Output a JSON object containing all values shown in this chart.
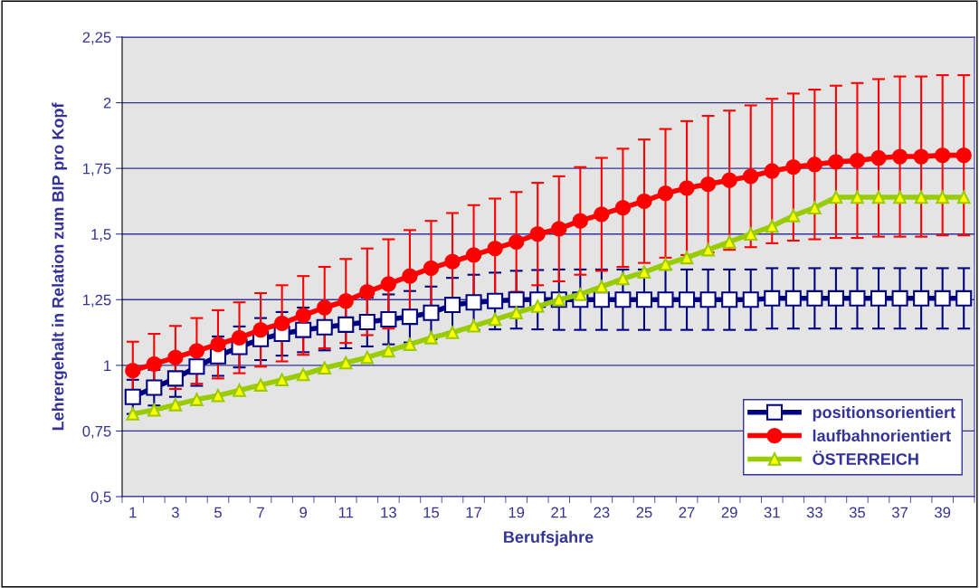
{
  "chart_data": {
    "type": "line",
    "xlabel": "Berufsjahre",
    "ylabel": "Lehrergehalt in Relation zum BIP pro Kopf",
    "categories": [
      "1",
      null,
      "3",
      null,
      "5",
      null,
      "7",
      null,
      "9",
      null,
      "11",
      null,
      "13",
      null,
      "15",
      null,
      "17",
      null,
      "19",
      null,
      "21",
      null,
      "23",
      null,
      "25",
      null,
      "27",
      null,
      "29",
      null,
      "31",
      null,
      "33",
      null,
      "35",
      null,
      "37",
      null,
      "39",
      null
    ],
    "ylim": [
      0.5,
      2.25
    ],
    "yticks": [
      {
        "value": 0.5,
        "label": "0,5"
      },
      {
        "value": 0.75,
        "label": "0,75"
      },
      {
        "value": 1,
        "label": "1"
      },
      {
        "value": 1.25,
        "label": "1,25"
      },
      {
        "value": 1.5,
        "label": "1,5"
      },
      {
        "value": 1.75,
        "label": "1,75"
      },
      {
        "value": 2,
        "label": "2"
      },
      {
        "value": 2.25,
        "label": "2,25"
      }
    ],
    "grid": "y",
    "legend": "bottom right",
    "series": [
      {
        "name": "positionsorientiert",
        "color": "#000080",
        "marker": "square",
        "values": [
          0.88,
          0.915,
          0.95,
          0.995,
          1.035,
          1.07,
          1.1,
          1.12,
          1.135,
          1.145,
          1.155,
          1.165,
          1.175,
          1.185,
          1.2,
          1.23,
          1.24,
          1.245,
          1.25,
          1.25,
          1.25,
          1.25,
          1.25,
          1.25,
          1.25,
          1.25,
          1.25,
          1.25,
          1.25,
          1.25,
          1.255,
          1.255,
          1.255,
          1.255,
          1.255,
          1.255,
          1.255,
          1.255,
          1.255,
          1.255
        ],
        "errors": [
          0.065,
          0.068,
          0.07,
          0.073,
          0.075,
          0.078,
          0.08,
          0.083,
          0.085,
          0.088,
          0.09,
          0.093,
          0.095,
          0.098,
          0.1,
          0.103,
          0.105,
          0.108,
          0.11,
          0.113,
          0.115,
          0.115,
          0.115,
          0.115,
          0.115,
          0.115,
          0.115,
          0.115,
          0.115,
          0.115,
          0.115,
          0.115,
          0.115,
          0.115,
          0.115,
          0.115,
          0.115,
          0.115,
          0.115,
          0.115
        ]
      },
      {
        "name": "laufbahnorientiert",
        "color": "#ff0000",
        "marker": "circle",
        "values": [
          0.98,
          1.005,
          1.03,
          1.055,
          1.08,
          1.105,
          1.135,
          1.16,
          1.19,
          1.22,
          1.245,
          1.28,
          1.31,
          1.34,
          1.37,
          1.395,
          1.42,
          1.445,
          1.47,
          1.5,
          1.52,
          1.55,
          1.575,
          1.6,
          1.625,
          1.655,
          1.675,
          1.69,
          1.705,
          1.72,
          1.74,
          1.755,
          1.765,
          1.775,
          1.78,
          1.79,
          1.795,
          1.795,
          1.8,
          1.8
        ],
        "errors": [
          0.11,
          0.115,
          0.12,
          0.125,
          0.13,
          0.135,
          0.14,
          0.145,
          0.15,
          0.155,
          0.16,
          0.165,
          0.17,
          0.175,
          0.18,
          0.185,
          0.19,
          0.19,
          0.19,
          0.195,
          0.2,
          0.205,
          0.215,
          0.225,
          0.235,
          0.245,
          0.255,
          0.26,
          0.265,
          0.27,
          0.275,
          0.28,
          0.285,
          0.29,
          0.295,
          0.3,
          0.305,
          0.305,
          0.305,
          0.305
        ]
      },
      {
        "name": "ÖSTERREICH",
        "color": "#99cc00",
        "marker": "triangle",
        "values": [
          0.815,
          0.83,
          0.85,
          0.87,
          0.885,
          0.905,
          0.925,
          0.945,
          0.965,
          0.99,
          1.01,
          1.03,
          1.055,
          1.08,
          1.105,
          1.125,
          1.15,
          1.175,
          1.2,
          1.225,
          1.25,
          1.27,
          1.3,
          1.33,
          1.355,
          1.385,
          1.41,
          1.44,
          1.47,
          1.5,
          1.53,
          1.57,
          1.6,
          1.64,
          1.64,
          1.64,
          1.64,
          1.64,
          1.64,
          1.64
        ]
      }
    ]
  }
}
